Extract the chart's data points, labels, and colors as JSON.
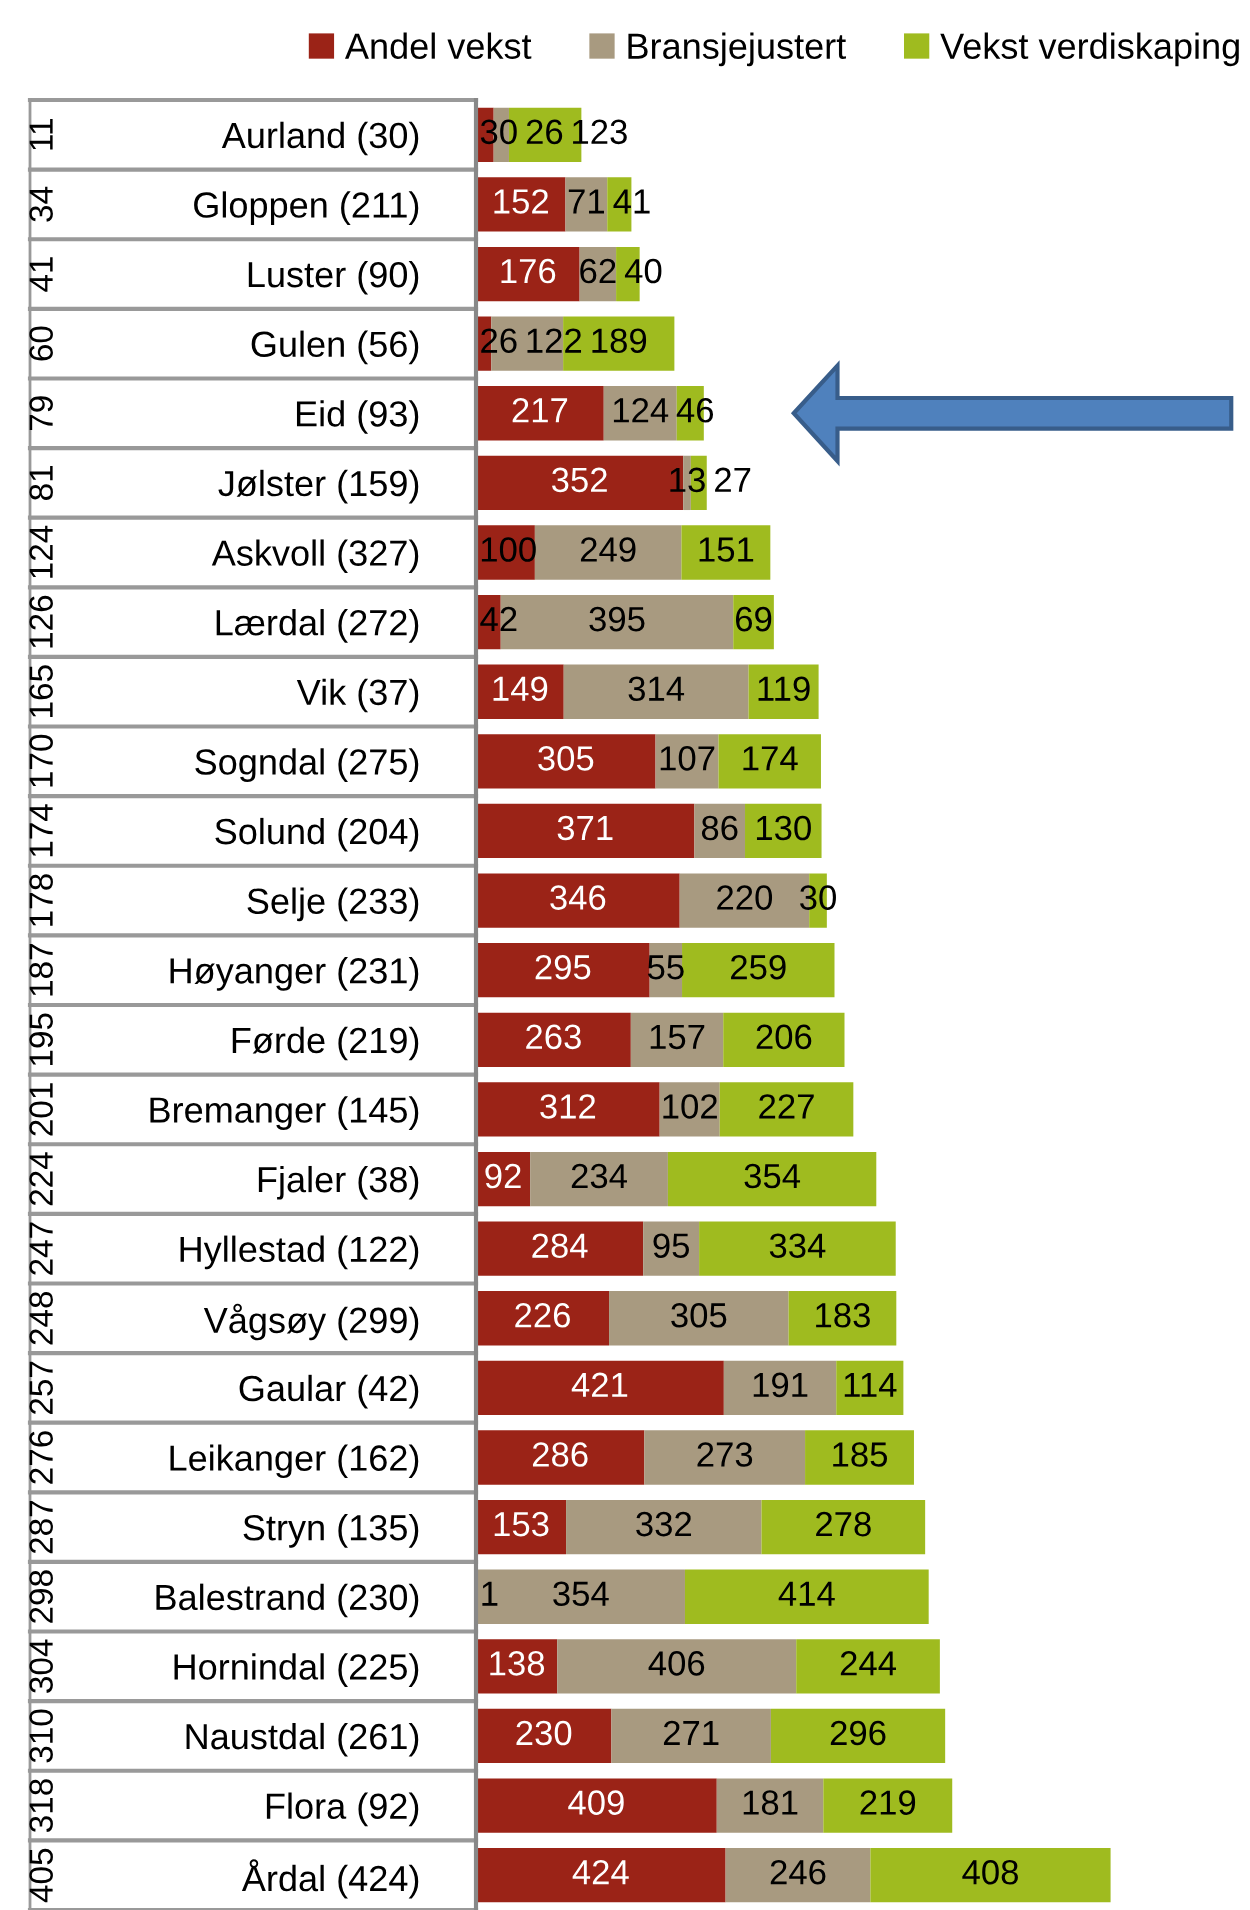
{
  "chart_data": {
    "type": "bar",
    "orientation": "horizontal",
    "stacked": true,
    "data_labels": true,
    "legend": "top",
    "grid": false,
    "categories": [
      "Aurland (30)",
      "Gloppen (211)",
      "Luster (90)",
      "Gulen (56)",
      "Eid (93)",
      "Jølster (159)",
      "Askvoll (327)",
      "Lærdal (272)",
      "Vik (37)",
      "Sogndal (275)",
      "Solund (204)",
      "Selje (233)",
      "Høyanger (231)",
      "Førde (219)",
      "Bremanger (145)",
      "Fjaler (38)",
      "Hyllestad (122)",
      "Vågsøy (299)",
      "Gaular (42)",
      "Leikanger (162)",
      "Stryn (135)",
      "Balestrand (230)",
      "Hornindal (225)",
      "Naustdal (261)",
      "Flora (92)",
      "Årdal (424)"
    ],
    "series": [
      {
        "name": "Andel vekst",
        "color": "#9b2317",
        "values": [
          30,
          152,
          176,
          26,
          217,
          352,
          100,
          42,
          149,
          305,
          371,
          346,
          295,
          263,
          312,
          92,
          284,
          226,
          421,
          286,
          153,
          1,
          138,
          230,
          409,
          424
        ]
      },
      {
        "name": "Bransjejustert",
        "color": "#a89a80",
        "values": [
          26,
          71,
          62,
          122,
          124,
          13,
          249,
          395,
          314,
          107,
          86,
          220,
          55,
          157,
          102,
          234,
          95,
          305,
          191,
          273,
          332,
          354,
          406,
          271,
          181,
          246
        ]
      },
      {
        "name": "Vekst verdiskaping",
        "color": "#9fbb1f",
        "values": [
          123,
          41,
          40,
          189,
          46,
          27,
          151,
          69,
          119,
          174,
          130,
          30,
          259,
          206,
          227,
          354,
          334,
          183,
          114,
          185,
          278,
          414,
          244,
          296,
          219,
          408
        ]
      }
    ],
    "annotations": [
      "11",
      "34",
      "41",
      "60",
      "79",
      "81",
      "124",
      "126",
      "165",
      "170",
      "174",
      "178",
      "187",
      "195",
      "201",
      "224",
      "247",
      "248",
      "257",
      "276",
      "287",
      "298",
      "304",
      "310",
      "318",
      "405"
    ]
  }
}
